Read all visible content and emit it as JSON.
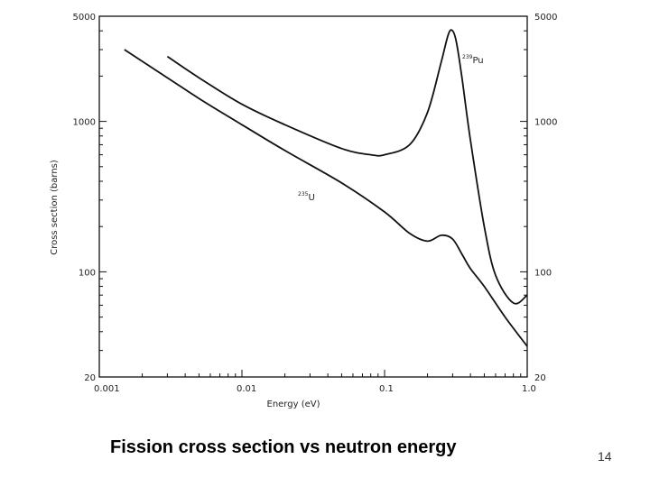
{
  "slide": {
    "caption": "Fission cross section vs neutron energy",
    "page_number": "14"
  },
  "chart_data": {
    "type": "line",
    "title": "",
    "xlabel": "Energy (eV)",
    "ylabel": "Cross section (barns)",
    "xscale": "log",
    "yscale": "log",
    "xlim": [
      0.001,
      1.0
    ],
    "ylim": [
      20,
      5000
    ],
    "xticks": [
      {
        "value": 0.001,
        "label": "0.001"
      },
      {
        "value": 0.01,
        "label": "0.01"
      },
      {
        "value": 0.1,
        "label": "0.1"
      },
      {
        "value": 1.0,
        "label": "1.0"
      }
    ],
    "yticks_left": [
      {
        "value": 5000,
        "label": "5000"
      },
      {
        "value": 1000,
        "label": "1000"
      },
      {
        "value": 100,
        "label": "100"
      },
      {
        "value": 20,
        "label": "20"
      }
    ],
    "yticks_right": [
      {
        "value": 5000,
        "label": "5000"
      },
      {
        "value": 1000,
        "label": "1000"
      },
      {
        "value": 100,
        "label": "100"
      },
      {
        "value": 20,
        "label": "20"
      }
    ],
    "grid": false,
    "series": [
      {
        "name": "239Pu",
        "label_mass": "239",
        "label_symbol": "Pu",
        "x": [
          0.003,
          0.005,
          0.01,
          0.02,
          0.05,
          0.08,
          0.1,
          0.15,
          0.2,
          0.25,
          0.28,
          0.3,
          0.32,
          0.35,
          0.4,
          0.5,
          0.6,
          0.8,
          1.0
        ],
        "y": [
          2700,
          1950,
          1300,
          950,
          660,
          600,
          600,
          700,
          1150,
          2500,
          3800,
          4000,
          3300,
          1900,
          750,
          200,
          95,
          62,
          70
        ]
      },
      {
        "name": "235U",
        "label_mass": "235",
        "label_symbol": "U",
        "x": [
          0.0015,
          0.003,
          0.005,
          0.01,
          0.02,
          0.05,
          0.1,
          0.15,
          0.2,
          0.25,
          0.3,
          0.35,
          0.4,
          0.5,
          0.7,
          1.0
        ],
        "y": [
          3000,
          1950,
          1420,
          950,
          640,
          390,
          250,
          180,
          160,
          175,
          165,
          130,
          105,
          80,
          50,
          32
        ]
      }
    ]
  }
}
